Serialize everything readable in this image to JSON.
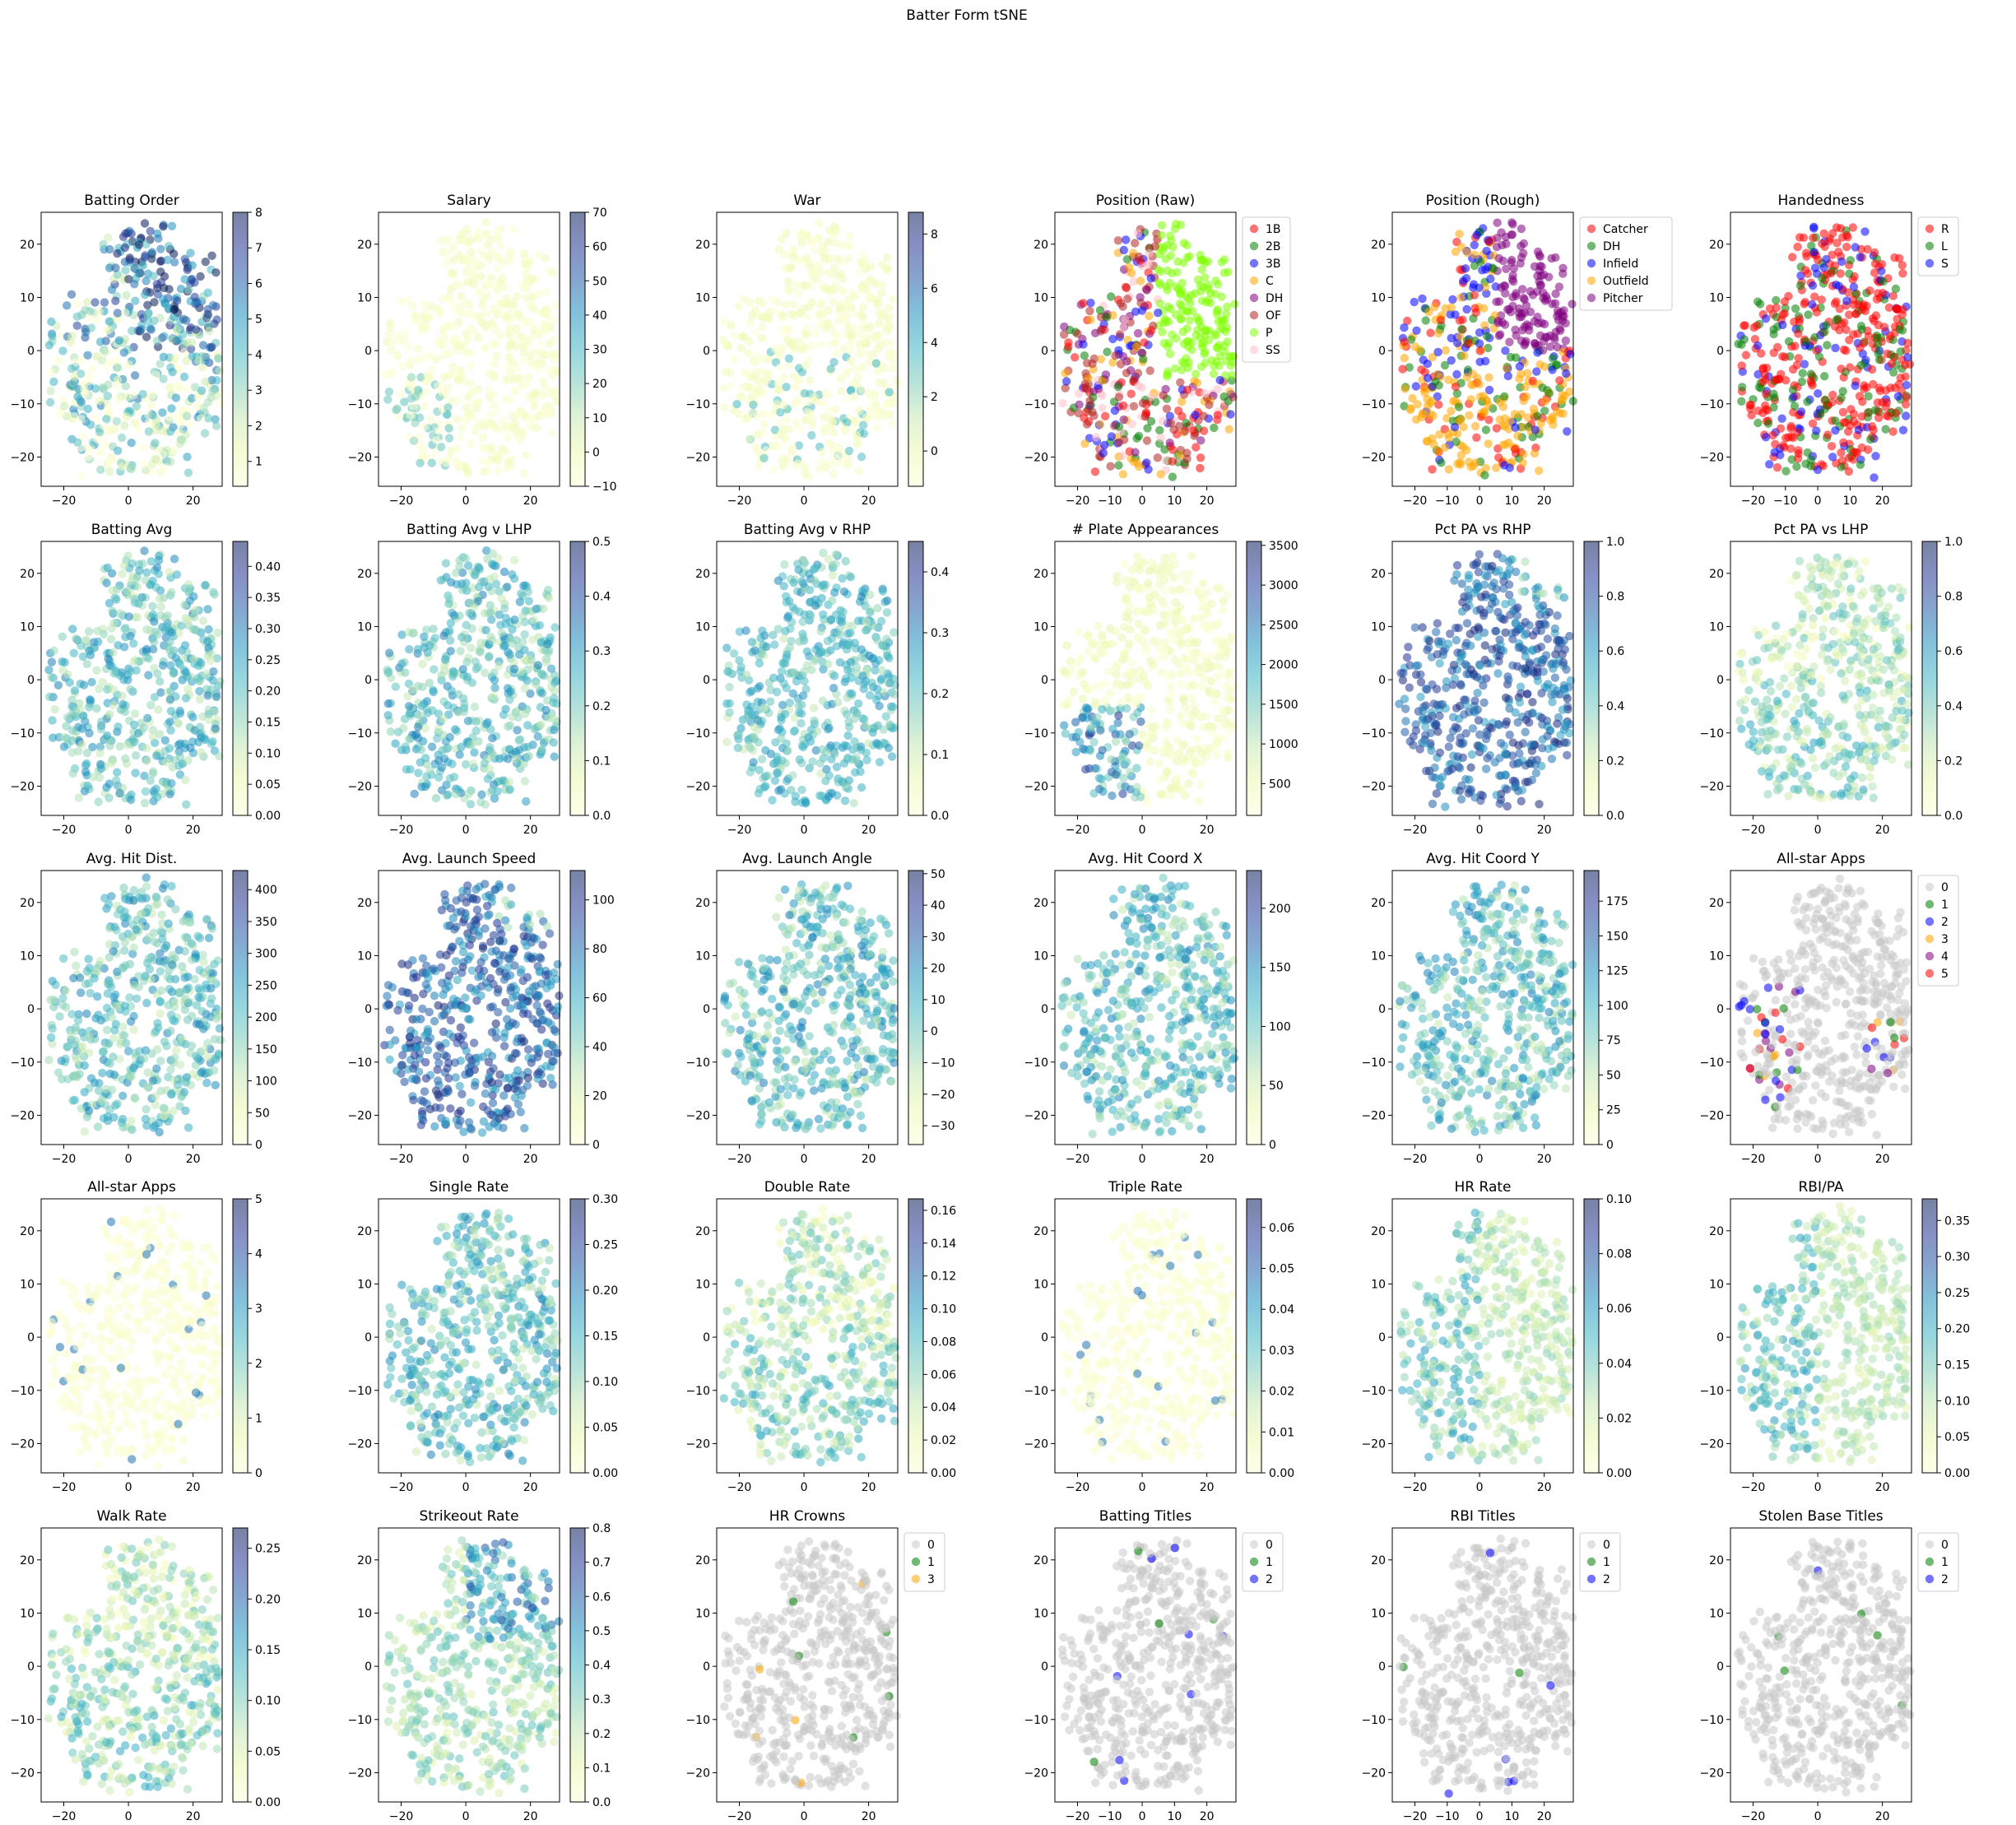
{
  "figure_title": "Batter Form tSNE",
  "common": {
    "xlim": [
      -27,
      29
    ],
    "ylim": [
      -25.5,
      26
    ],
    "xticks": [
      -20,
      0,
      20
    ],
    "xticks_fine": [
      -20,
      -10,
      0,
      10,
      20
    ],
    "yticks": [
      -20,
      -10,
      0,
      10,
      20
    ]
  },
  "colors": {
    "ylgnbu": [
      "#ffffd9",
      "#edf8b1",
      "#c7e9b4",
      "#7fcdbb",
      "#41b6c4",
      "#1d91c0",
      "#225ea8",
      "#253494",
      "#081d58"
    ],
    "scatter_alpha": 0.55,
    "gray": "#c8c8c8"
  },
  "chart_data": [
    {
      "type": "scatter",
      "title": "Batting Order",
      "colorbar": {
        "min": 0.3,
        "max": 8,
        "ticks": [
          "1",
          "2",
          "3",
          "4",
          "5",
          "6",
          "7",
          "8"
        ],
        "tick_values": [
          1,
          2,
          3,
          4,
          5,
          6,
          7,
          8
        ]
      },
      "cmap_pattern": "order",
      "seed": 1
    },
    {
      "type": "scatter",
      "title": "Salary",
      "colorbar": {
        "min": -10,
        "max": 70,
        "ticks": [
          "−10",
          "0",
          "10",
          "20",
          "30",
          "40",
          "50",
          "60",
          "70"
        ],
        "tick_values": [
          -10,
          0,
          10,
          20,
          30,
          40,
          50,
          60,
          70
        ]
      },
      "cmap_pattern": "salary",
      "seed": 2
    },
    {
      "type": "scatter",
      "title": "War",
      "colorbar": {
        "min": -1.3,
        "max": 8.8,
        "ticks": [
          "0",
          "2",
          "4",
          "6",
          "8"
        ],
        "tick_values": [
          0,
          2,
          4,
          6,
          8
        ]
      },
      "cmap_pattern": "low",
      "seed": 3
    },
    {
      "type": "scatter",
      "title": "Position (Raw)",
      "legend": {
        "labels": [
          "1B",
          "2B",
          "3B",
          "C",
          "DH",
          "OF",
          "P",
          "SS"
        ],
        "colors": [
          "#ff0000",
          "#008000",
          "#0000ff",
          "#ffa500",
          "#800080",
          "#b22222",
          "#7fff00",
          "#ffc0cb"
        ]
      },
      "cat_pattern": "posraw",
      "seed": 4
    },
    {
      "type": "scatter",
      "title": "Position (Rough)",
      "legend": {
        "labels": [
          "Catcher",
          "DH",
          "Infield",
          "Outfield",
          "Pitcher"
        ],
        "colors": [
          "#ff0000",
          "#008000",
          "#0000ff",
          "#ffa500",
          "#800080"
        ]
      },
      "cat_pattern": "posrough",
      "seed": 5
    },
    {
      "type": "scatter",
      "title": "Handedness",
      "legend": {
        "labels": [
          "R",
          "L",
          "S"
        ],
        "colors": [
          "#ff0000",
          "#008000",
          "#0000ff"
        ]
      },
      "cat_pattern": "hand",
      "seed": 6
    },
    {
      "type": "scatter",
      "title": "Batting Avg",
      "colorbar": {
        "min": 0,
        "max": 0.44,
        "ticks": [
          "0.00",
          "0.05",
          "0.10",
          "0.15",
          "0.20",
          "0.25",
          "0.30",
          "0.35",
          "0.40"
        ],
        "tick_values": [
          0,
          0.05,
          0.1,
          0.15,
          0.2,
          0.25,
          0.3,
          0.35,
          0.4
        ]
      },
      "cmap_pattern": "mid",
      "seed": 7
    },
    {
      "type": "scatter",
      "title": "Batting Avg v LHP",
      "colorbar": {
        "min": 0,
        "max": 0.5,
        "ticks": [
          "0.0",
          "0.1",
          "0.2",
          "0.3",
          "0.4",
          "0.5"
        ],
        "tick_values": [
          0,
          0.1,
          0.2,
          0.3,
          0.4,
          0.5
        ]
      },
      "cmap_pattern": "mid",
      "seed": 8
    },
    {
      "type": "scatter",
      "title": "Batting Avg v RHP",
      "colorbar": {
        "min": 0,
        "max": 0.45,
        "ticks": [
          "0.0",
          "0.1",
          "0.2",
          "0.3",
          "0.4"
        ],
        "tick_values": [
          0,
          0.1,
          0.2,
          0.3,
          0.4
        ]
      },
      "cmap_pattern": "mid",
      "seed": 9
    },
    {
      "type": "scatter",
      "title": "# Plate Appearances",
      "colorbar": {
        "min": 100,
        "max": 3550,
        "ticks": [
          "500",
          "1000",
          "1500",
          "2000",
          "2500",
          "3000",
          "3500"
        ],
        "tick_values": [
          500,
          1000,
          1500,
          2000,
          2500,
          3000,
          3500
        ]
      },
      "cmap_pattern": "pa",
      "seed": 10
    },
    {
      "type": "scatter",
      "title": "Pct PA vs RHP",
      "colorbar": {
        "min": 0,
        "max": 1,
        "ticks": [
          "0.0",
          "0.2",
          "0.4",
          "0.6",
          "0.8",
          "1.0"
        ],
        "tick_values": [
          0,
          0.2,
          0.4,
          0.6,
          0.8,
          1.0
        ]
      },
      "cmap_pattern": "high",
      "seed": 11
    },
    {
      "type": "scatter",
      "title": "Pct PA vs LHP",
      "colorbar": {
        "min": 0,
        "max": 1,
        "ticks": [
          "0.0",
          "0.2",
          "0.4",
          "0.6",
          "0.8",
          "1.0"
        ],
        "tick_values": [
          0,
          0.2,
          0.4,
          0.6,
          0.8,
          1.0
        ]
      },
      "cmap_pattern": "lowmid",
      "seed": 12
    },
    {
      "type": "scatter",
      "title": "Avg. Hit Dist.",
      "colorbar": {
        "min": 0,
        "max": 430,
        "ticks": [
          "0",
          "50",
          "100",
          "150",
          "200",
          "250",
          "300",
          "350",
          "400"
        ],
        "tick_values": [
          0,
          50,
          100,
          150,
          200,
          250,
          300,
          350,
          400
        ]
      },
      "cmap_pattern": "mid",
      "seed": 13
    },
    {
      "type": "scatter",
      "title": "Avg. Launch Speed",
      "colorbar": {
        "min": 0,
        "max": 112,
        "ticks": [
          "0",
          "20",
          "40",
          "60",
          "80",
          "100"
        ],
        "tick_values": [
          0,
          20,
          40,
          60,
          80,
          100
        ]
      },
      "cmap_pattern": "high",
      "seed": 14
    },
    {
      "type": "scatter",
      "title": "Avg. Launch Angle",
      "colorbar": {
        "min": -36,
        "max": 51,
        "ticks": [
          "−30",
          "−20",
          "−10",
          "0",
          "10",
          "20",
          "30",
          "40",
          "50"
        ],
        "tick_values": [
          -30,
          -20,
          -10,
          0,
          10,
          20,
          30,
          40,
          50
        ]
      },
      "cmap_pattern": "mid",
      "seed": 15
    },
    {
      "type": "scatter",
      "title": "Avg. Hit Coord X",
      "colorbar": {
        "min": 0,
        "max": 232,
        "ticks": [
          "0",
          "50",
          "100",
          "150",
          "200"
        ],
        "tick_values": [
          0,
          50,
          100,
          150,
          200
        ]
      },
      "cmap_pattern": "mid",
      "seed": 16
    },
    {
      "type": "scatter",
      "title": "Avg. Hit Coord Y",
      "colorbar": {
        "min": 0,
        "max": 197,
        "ticks": [
          "0",
          "25",
          "50",
          "75",
          "100",
          "125",
          "150",
          "175"
        ],
        "tick_values": [
          0,
          25,
          50,
          75,
          100,
          125,
          150,
          175
        ]
      },
      "cmap_pattern": "mid",
      "seed": 17
    },
    {
      "type": "scatter",
      "title": "All-star Apps",
      "legend": {
        "labels": [
          "0",
          "1",
          "2",
          "3",
          "4",
          "5"
        ],
        "colors": [
          "#c8c8c8",
          "#008000",
          "#0000ff",
          "#ffa500",
          "#800080",
          "#ff0000"
        ]
      },
      "cat_pattern": "rare",
      "seed": 18
    },
    {
      "type": "scatter",
      "title": "All-star Apps",
      "colorbar": {
        "min": 0,
        "max": 5,
        "ticks": [
          "0",
          "1",
          "2",
          "3",
          "4",
          "5"
        ],
        "tick_values": [
          0,
          1,
          2,
          3,
          4,
          5
        ]
      },
      "cmap_pattern": "verylow",
      "seed": 19
    },
    {
      "type": "scatter",
      "title": "Single Rate",
      "colorbar": {
        "min": 0,
        "max": 0.3,
        "ticks": [
          "0.00",
          "0.05",
          "0.10",
          "0.15",
          "0.20",
          "0.25",
          "0.30"
        ],
        "tick_values": [
          0,
          0.05,
          0.1,
          0.15,
          0.2,
          0.25,
          0.3
        ]
      },
      "cmap_pattern": "mid",
      "seed": 20
    },
    {
      "type": "scatter",
      "title": "Double Rate",
      "colorbar": {
        "min": 0,
        "max": 0.167,
        "ticks": [
          "0.00",
          "0.02",
          "0.04",
          "0.06",
          "0.08",
          "0.10",
          "0.12",
          "0.14",
          "0.16"
        ],
        "tick_values": [
          0,
          0.02,
          0.04,
          0.06,
          0.08,
          0.1,
          0.12,
          0.14,
          0.16
        ]
      },
      "cmap_pattern": "lowmid",
      "seed": 21
    },
    {
      "type": "scatter",
      "title": "Triple Rate",
      "colorbar": {
        "min": 0,
        "max": 0.067,
        "ticks": [
          "0.00",
          "0.01",
          "0.02",
          "0.03",
          "0.04",
          "0.05",
          "0.06"
        ],
        "tick_values": [
          0,
          0.01,
          0.02,
          0.03,
          0.04,
          0.05,
          0.06
        ]
      },
      "cmap_pattern": "verylow",
      "seed": 22
    },
    {
      "type": "scatter",
      "title": "HR Rate",
      "colorbar": {
        "min": 0,
        "max": 0.1,
        "ticks": [
          "0.00",
          "0.02",
          "0.04",
          "0.06",
          "0.08",
          "0.10"
        ],
        "tick_values": [
          0,
          0.02,
          0.04,
          0.06,
          0.08,
          0.1
        ]
      },
      "cmap_pattern": "hr",
      "seed": 23
    },
    {
      "type": "scatter",
      "title": "RBI/PA",
      "colorbar": {
        "min": 0,
        "max": 0.38,
        "ticks": [
          "0.00",
          "0.05",
          "0.10",
          "0.15",
          "0.20",
          "0.25",
          "0.30",
          "0.35"
        ],
        "tick_values": [
          0,
          0.05,
          0.1,
          0.15,
          0.2,
          0.25,
          0.3,
          0.35
        ]
      },
      "cmap_pattern": "hr",
      "seed": 24
    },
    {
      "type": "scatter",
      "title": "Walk Rate",
      "colorbar": {
        "min": 0,
        "max": 0.27,
        "ticks": [
          "0.00",
          "0.05",
          "0.10",
          "0.15",
          "0.20",
          "0.25"
        ],
        "tick_values": [
          0,
          0.05,
          0.1,
          0.15,
          0.2,
          0.25
        ]
      },
      "cmap_pattern": "lowmid",
      "seed": 25
    },
    {
      "type": "scatter",
      "title": "Strikeout Rate",
      "colorbar": {
        "min": 0,
        "max": 0.8,
        "ticks": [
          "0.0",
          "0.1",
          "0.2",
          "0.3",
          "0.4",
          "0.5",
          "0.6",
          "0.7",
          "0.8"
        ],
        "tick_values": [
          0,
          0.1,
          0.2,
          0.3,
          0.4,
          0.5,
          0.6,
          0.7,
          0.8
        ]
      },
      "cmap_pattern": "so",
      "seed": 26
    },
    {
      "type": "scatter",
      "title": "HR Crowns",
      "legend": {
        "labels": [
          "0",
          "1",
          "3"
        ],
        "colors": [
          "#c8c8c8",
          "#008000",
          "#ffa500"
        ]
      },
      "cat_pattern": "titles",
      "seed": 27
    },
    {
      "type": "scatter",
      "title": "Batting Titles",
      "legend": {
        "labels": [
          "0",
          "1",
          "2"
        ],
        "colors": [
          "#c8c8c8",
          "#008000",
          "#0000ff"
        ]
      },
      "cat_pattern": "titles",
      "seed": 28
    },
    {
      "type": "scatter",
      "title": "RBI Titles",
      "legend": {
        "labels": [
          "0",
          "1",
          "2"
        ],
        "colors": [
          "#c8c8c8",
          "#008000",
          "#0000ff"
        ]
      },
      "cat_pattern": "titles",
      "seed": 29
    },
    {
      "type": "scatter",
      "title": "Stolen Base Titles",
      "legend": {
        "labels": [
          "0",
          "1",
          "2"
        ],
        "colors": [
          "#c8c8c8",
          "#008000",
          "#0000ff"
        ]
      },
      "cat_pattern": "titles",
      "seed": 30
    }
  ]
}
